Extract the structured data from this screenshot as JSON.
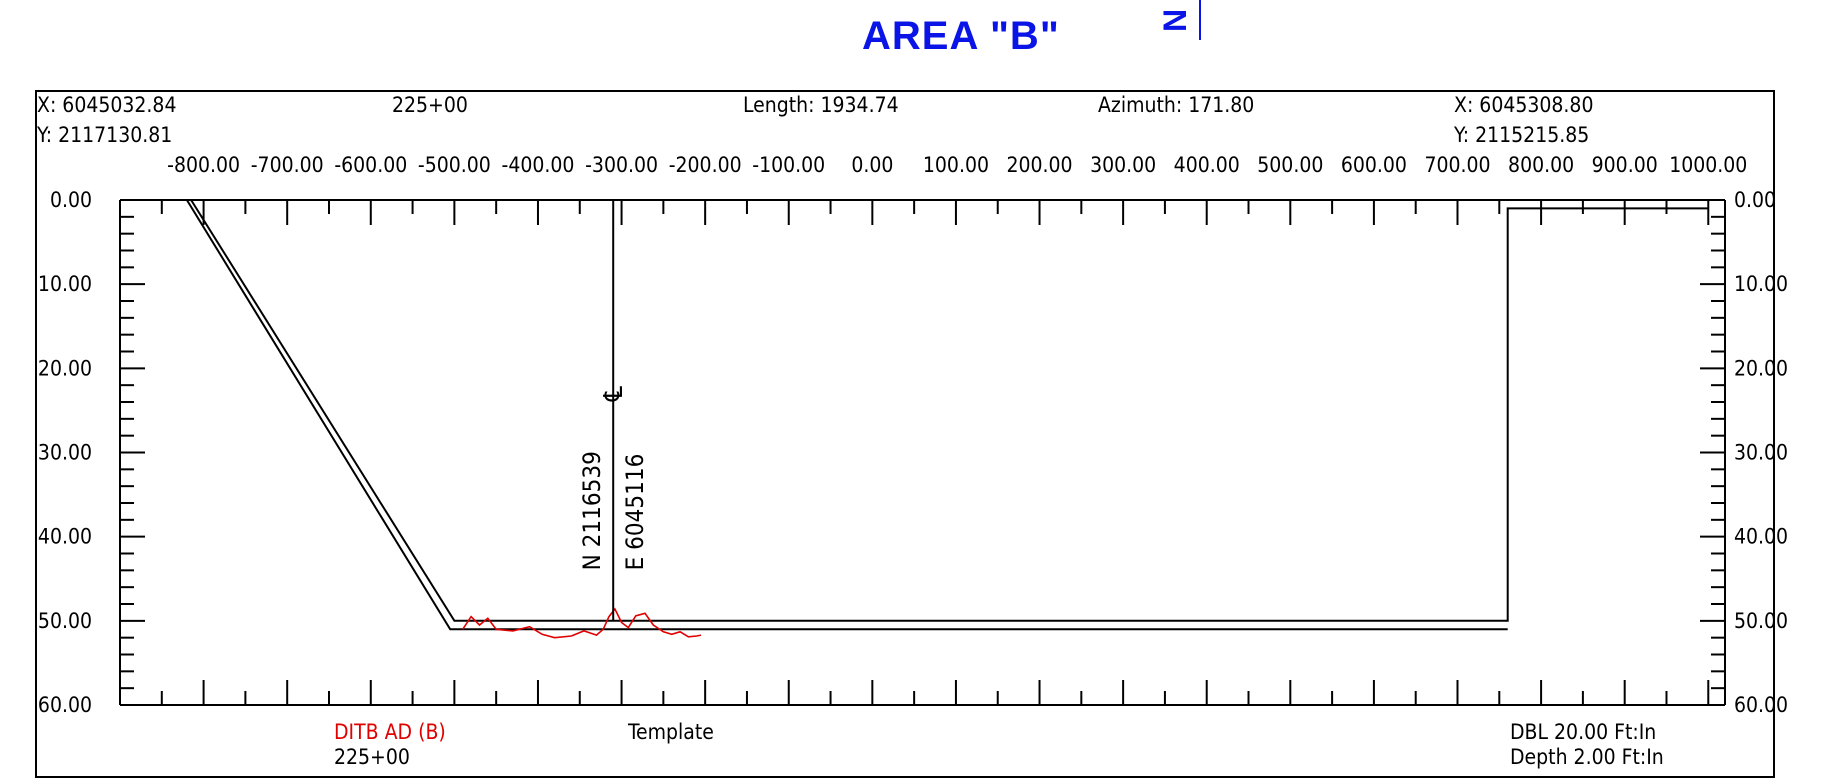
{
  "title": "AREA  \"B\"",
  "north_arrow_glyph": "N",
  "header": {
    "start_x": "X: 6045032.84",
    "start_y": "Y: 2117130.81",
    "station": "225+00",
    "length": "Length: 1934.74",
    "azimuth": "Azimuth: 171.80",
    "end_x": "X: 6045308.80",
    "end_y": "Y: 2115215.85"
  },
  "axis": {
    "x_ticks": [
      "-800.00",
      "-700.00",
      "-600.00",
      "-500.00",
      "-400.00",
      "-300.00",
      "-200.00",
      "-100.00",
      "0.00",
      "100.00",
      "200.00",
      "300.00",
      "400.00",
      "500.00",
      "600.00",
      "700.00",
      "800.00",
      "900.00",
      "1000.00"
    ],
    "y_ticks": [
      "0.00",
      "10.00",
      "20.00",
      "30.00",
      "40.00",
      "50.00",
      "60.00"
    ],
    "x_range": [
      -900,
      1020
    ],
    "y_range": [
      0,
      60
    ]
  },
  "centerline": {
    "symbol": "℄",
    "northing": "N 2116539",
    "easting": "E 6045116",
    "offset": -310
  },
  "footer": {
    "survey_label": "DITB AD (B)",
    "survey_station": "225+00",
    "template_label": "Template",
    "dbl": "DBL 20.00 Ft:In",
    "depth": "Depth 2.00 Ft:In"
  },
  "chart_data": {
    "type": "line",
    "xlabel": "",
    "ylabel": "",
    "xlim": [
      -900,
      1020
    ],
    "ylim": [
      60,
      0
    ],
    "series": [
      {
        "points": [
          [
            -815,
            0
          ],
          [
            -500,
            50
          ],
          [
            760,
            50
          ],
          [
            760,
            1
          ],
          [
            1000,
            1
          ]
        ]
      },
      {
        "points": [
          [
            -820,
            0
          ],
          [
            -505,
            51
          ],
          [
            760,
            51
          ]
        ]
      },
      {
        "name": "DITB AD (B)",
        "color": "#e00000",
        "points": [
          [
            -490,
            51
          ],
          [
            -480,
            49.5
          ],
          [
            -470,
            50.5
          ],
          [
            -460,
            49.7
          ],
          [
            -450,
            51
          ],
          [
            -430,
            51.2
          ],
          [
            -410,
            50.7
          ],
          [
            -395,
            51.6
          ],
          [
            -380,
            52
          ],
          [
            -360,
            51.8
          ],
          [
            -345,
            51.2
          ],
          [
            -330,
            51.7
          ],
          [
            -322,
            51
          ],
          [
            -315,
            49.5
          ],
          [
            -308,
            48.6
          ],
          [
            -300,
            50.2
          ],
          [
            -292,
            50.8
          ],
          [
            -283,
            49.4
          ],
          [
            -272,
            49.1
          ],
          [
            -262,
            50.5
          ],
          [
            -250,
            51.3
          ],
          [
            -240,
            51.6
          ],
          [
            -230,
            51.3
          ],
          [
            -220,
            51.9
          ],
          [
            -210,
            51.8
          ],
          [
            -205,
            51.7
          ]
        ]
      }
    ]
  }
}
